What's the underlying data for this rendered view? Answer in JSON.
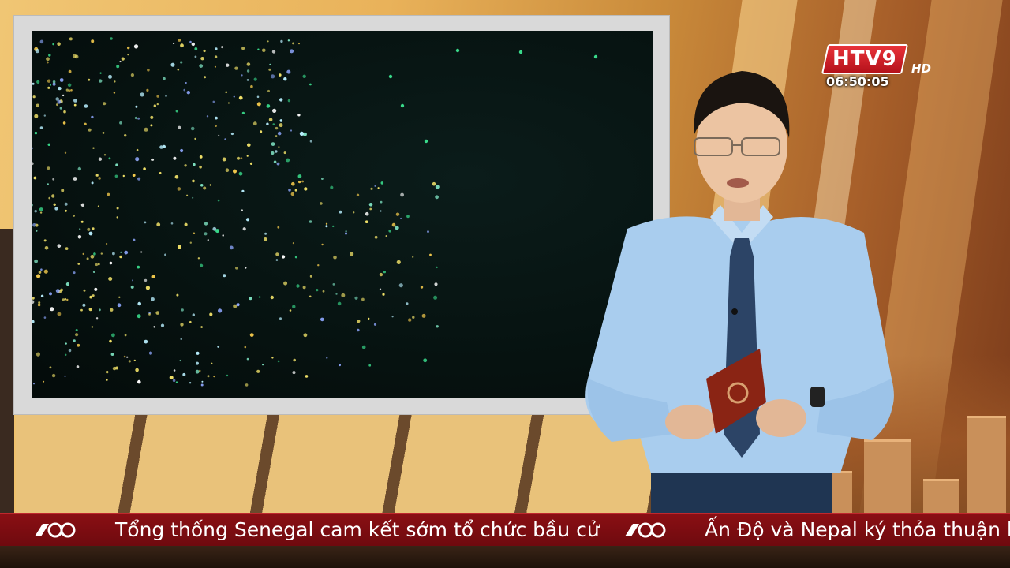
{
  "channel": {
    "logo_text": "HTV9",
    "hd_label": "HD",
    "clock": "06:50:05",
    "brand_color": "#d11a22"
  },
  "ticker": {
    "logo_icon": "htv-ticker-logo-icon",
    "items": [
      "Tổng thống Senegal cam kết sớm tổ chức bầu cử",
      "Ấn Độ và Nepal ký thỏa thuận l"
    ],
    "background_color": "#7a0c11"
  },
  "screen": {
    "content": "drone-light-show-video"
  },
  "anchor": {
    "prop": "tablet-icon"
  }
}
